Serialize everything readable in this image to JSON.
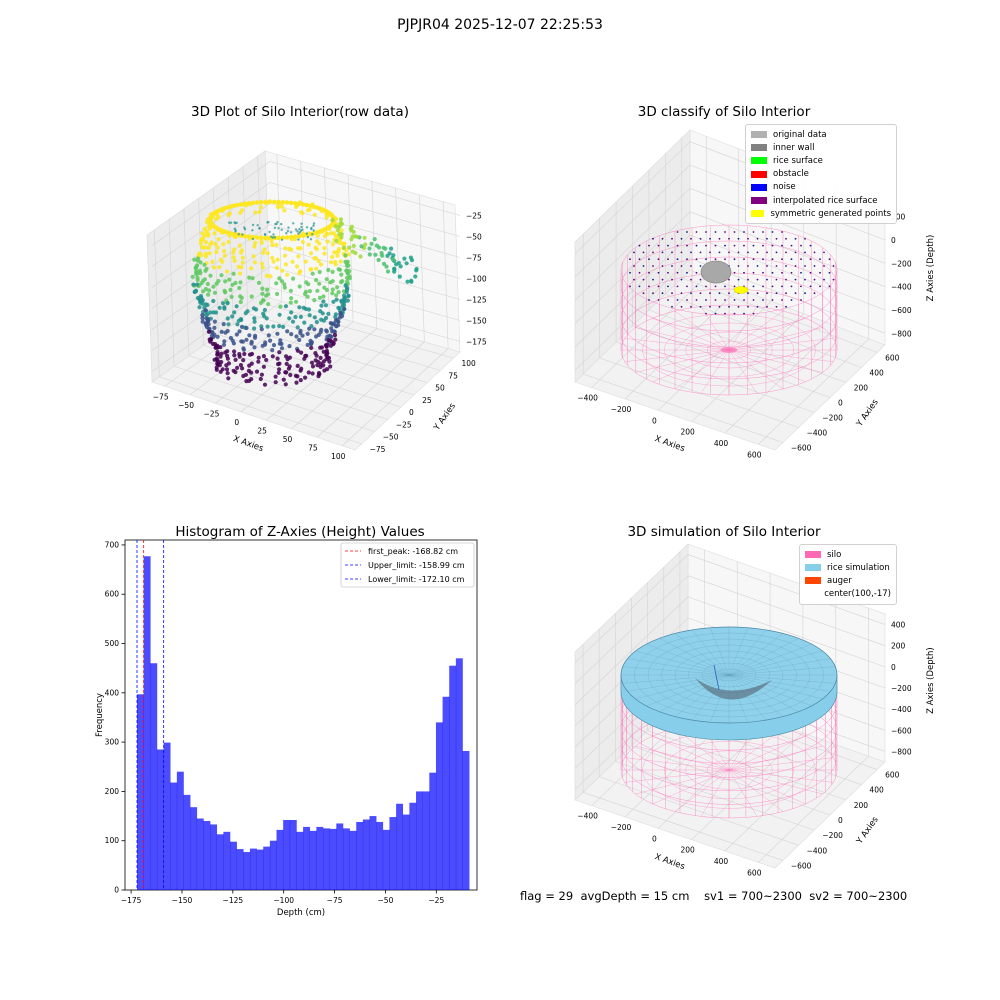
{
  "suptitle": "PJPJR04 2025-12-07 22:25:53",
  "panels": {
    "raw": {
      "title": "3D Plot of Silo Interior(row data)",
      "xlabel": "X Axies",
      "ylabel": "Y Axies",
      "zlabel": "Z Axies (Depth)",
      "x_ticks": [
        "−75",
        "−50",
        "−25",
        "0",
        "25",
        "50",
        "75",
        "100"
      ],
      "y_ticks": [
        "−75",
        "−50",
        "−25",
        "0",
        "25",
        "50",
        "75",
        "100"
      ],
      "z_ticks": [
        "−25",
        "−50",
        "−75",
        "−100",
        "−125",
        "−150",
        "−175"
      ]
    },
    "classify": {
      "title": "3D classify of Silo Interior",
      "xlabel": "X Axies",
      "ylabel": "Y Axies",
      "zlabel": "Z Axies (Depth)",
      "x_ticks": [
        "−400",
        "−200",
        "0",
        "200",
        "400",
        "600"
      ],
      "y_ticks": [
        "−600",
        "−400",
        "−200",
        "0",
        "200",
        "400",
        "600"
      ],
      "z_ticks": [
        "200",
        "0",
        "−200",
        "−400",
        "−600",
        "−800"
      ],
      "legend": [
        {
          "label": "original data",
          "color": "#b0b0b0"
        },
        {
          "label": "inner wall",
          "color": "#808080"
        },
        {
          "label": "rice surface",
          "color": "#00ff00"
        },
        {
          "label": "obstacle",
          "color": "#ff0000"
        },
        {
          "label": "noise",
          "color": "#0000ff"
        },
        {
          "label": "interpolated rice surface",
          "color": "#800080"
        },
        {
          "label": "symmetric generated points",
          "color": "#ffff00"
        }
      ]
    },
    "simulation": {
      "title": "3D simulation of Silo Interior",
      "xlabel": "X Axies",
      "ylabel": "Y Axies",
      "zlabel": "Z Axies (Depth)",
      "x_ticks": [
        "−400",
        "−200",
        "0",
        "200",
        "400",
        "600"
      ],
      "y_ticks": [
        "−600",
        "−400",
        "−200",
        "0",
        "200",
        "400",
        "600"
      ],
      "z_ticks": [
        "400",
        "200",
        "0",
        "−200",
        "−400",
        "−600",
        "−800"
      ],
      "legend": [
        {
          "label": "silo",
          "color": "#ff69b4"
        },
        {
          "label": "rice simulation",
          "color": "#87ceeb"
        },
        {
          "label": "auger",
          "color": "#ff4500"
        },
        {
          "label": "center(100,-17)",
          "color": ""
        }
      ]
    }
  },
  "chart_data": {
    "type": "bar",
    "title": "Histogram of Z-Axies (Height) Values",
    "xlabel": "Depth (cm)",
    "ylabel": "Frequency",
    "xlim": [
      -178,
      -5
    ],
    "ylim": [
      0,
      710
    ],
    "x_ticks": [
      -175,
      -150,
      -125,
      -100,
      -75,
      -50,
      -25
    ],
    "y_ticks": [
      0,
      100,
      200,
      300,
      400,
      500,
      600,
      700
    ],
    "bin_start": -172.1,
    "bin_width": 3.265,
    "values": [
      397,
      677,
      460,
      285,
      299,
      218,
      240,
      193,
      168,
      145,
      140,
      133,
      113,
      118,
      98,
      83,
      77,
      84,
      82,
      88,
      100,
      122,
      142,
      142,
      118,
      128,
      120,
      128,
      125,
      124,
      135,
      125,
      120,
      138,
      143,
      150,
      138,
      122,
      148,
      175,
      153,
      177,
      200,
      200,
      238,
      340,
      392,
      455,
      470,
      282
    ],
    "bar_color": "#0000ff",
    "vlines": [
      {
        "label": "first_peak: -168.82 cm",
        "x": -168.82,
        "color": "#ff0000"
      },
      {
        "label": "Upper_limit: -158.99 cm",
        "x": -158.99,
        "color": "#0000ff"
      },
      {
        "label": "Lower_limit: -172.10 cm",
        "x": -172.1,
        "color": "#0000ff"
      }
    ]
  },
  "status": {
    "flag": "flag = 29",
    "avg_depth": "avgDepth = 15 cm",
    "sv1": "sv1 = 700~2300",
    "sv2": "sv2 = 700~2300"
  }
}
